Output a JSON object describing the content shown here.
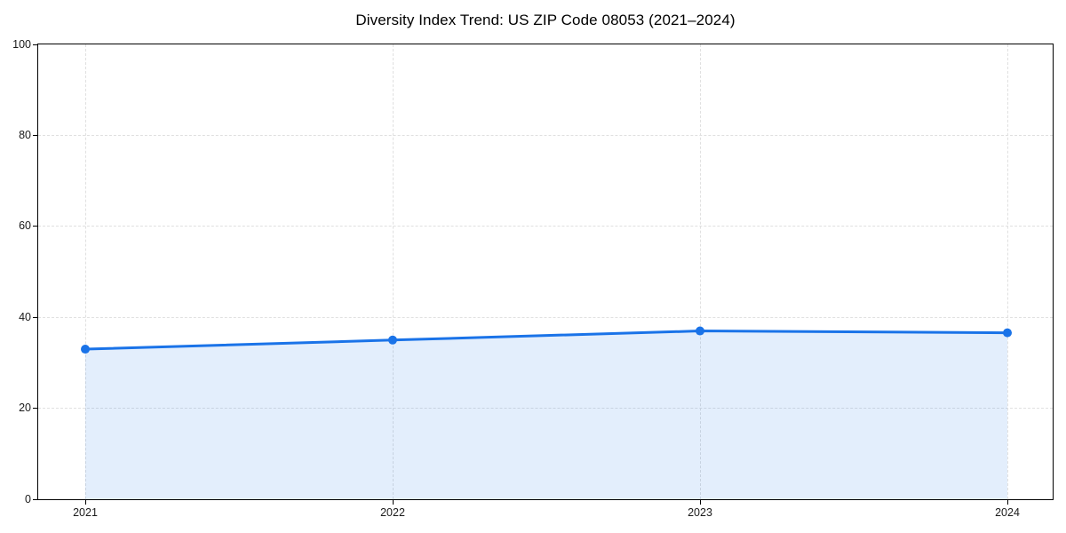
{
  "chart_data": {
    "type": "line",
    "title": "Diversity Index Trend: US ZIP Code 08053 (2021–2024)",
    "categories": [
      "2021",
      "2022",
      "2023",
      "2024"
    ],
    "series": [
      {
        "name": "Diversity Index",
        "values": [
          33,
          35,
          37,
          36.6
        ]
      }
    ],
    "xlabel": "",
    "ylabel": "",
    "ylim": [
      0,
      100
    ],
    "yticks": [
      0,
      20,
      40,
      60,
      80,
      100
    ],
    "grid": "dashed",
    "legend_position": "none",
    "line_color": "#1a73e8",
    "marker_color": "#1a73e8",
    "fill_color": "rgba(26,115,232,0.12)",
    "grid_color": "#e0e0e0",
    "spine_color": "#000000",
    "marker": "circle"
  }
}
